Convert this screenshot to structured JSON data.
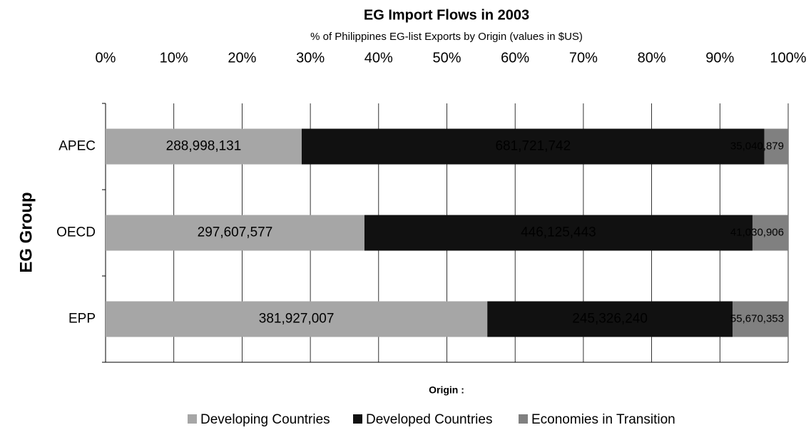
{
  "chart_data": {
    "type": "bar",
    "orientation": "horizontal",
    "stacked": "percent",
    "title": "EG Import Flows in 2003",
    "subtitle": "% of Philippines EG-list Exports by Origin (values in $US)",
    "y_label": "EG Group",
    "legend_title": "Origin :",
    "legend": "bottom",
    "grid": true,
    "categories": [
      "APEC",
      "OECD",
      "EPP"
    ],
    "series": [
      {
        "name": "Developing Countries",
        "color": "#a6a6a6",
        "values": [
          288998131,
          297607577,
          381927007
        ],
        "value_labels": [
          "288,998,131",
          "297,607,577",
          "381,927,007"
        ]
      },
      {
        "name": "Developed Countries",
        "color": "#111111",
        "values": [
          681721742,
          446125443,
          245326240
        ],
        "value_labels": [
          "681,721,742",
          "446,125,443",
          "245,326,240"
        ]
      },
      {
        "name": "Economies in Transition",
        "color": "#808080",
        "values": [
          35040879,
          41030906,
          55670353
        ],
        "value_labels": [
          "35,040,879",
          "41,030,906",
          "55,670,353"
        ]
      }
    ],
    "xlim": [
      0,
      100
    ],
    "xticks": [
      {
        "value": 0,
        "label": "0%"
      },
      {
        "value": 10,
        "label": "10%"
      },
      {
        "value": 20,
        "label": "20%"
      },
      {
        "value": 30,
        "label": "30%"
      },
      {
        "value": 40,
        "label": "40%"
      },
      {
        "value": 50,
        "label": "50%"
      },
      {
        "value": 60,
        "label": "60%"
      },
      {
        "value": 70,
        "label": "70%"
      },
      {
        "value": 80,
        "label": "80%"
      },
      {
        "value": 90,
        "label": "90%"
      },
      {
        "value": 100,
        "label": "100%"
      }
    ]
  }
}
